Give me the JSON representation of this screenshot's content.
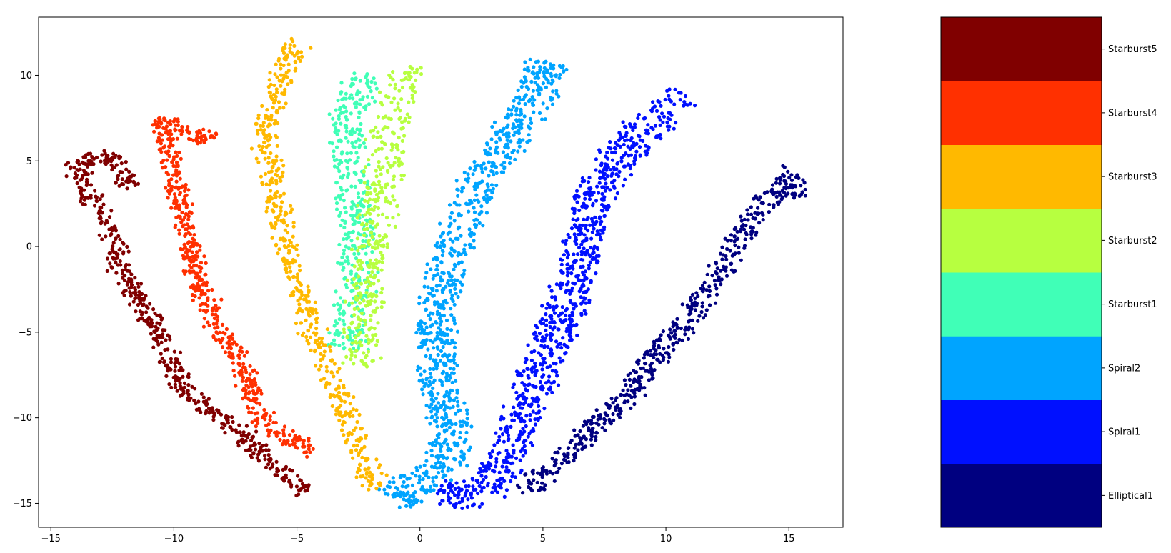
{
  "chart_data": {
    "type": "scatter",
    "title": "",
    "xlabel": "",
    "ylabel": "",
    "xlim": [
      -15.5,
      17.2
    ],
    "ylim": [
      -16.4,
      13.4
    ],
    "x_ticks": [
      -15,
      -10,
      -5,
      0,
      5,
      10,
      15
    ],
    "y_ticks": [
      -15,
      -10,
      -5,
      0,
      5,
      10
    ],
    "grid": false,
    "colorbar": {
      "position": "right",
      "categories": [
        "Elliptical1",
        "Spiral1",
        "Spiral2",
        "Starburst1",
        "Starburst2",
        "Starburst3",
        "Starburst4",
        "Starburst5"
      ],
      "colors": [
        "#000080",
        "#0010ff",
        "#00a4ff",
        "#40ffb7",
        "#b7ff40",
        "#ffb900",
        "#ff3000",
        "#800000"
      ]
    },
    "series": [
      {
        "name": "Elliptical1",
        "color": "#000080",
        "spine": [
          [
            4.3,
            -14.3
          ],
          [
            6.2,
            -11.8
          ],
          [
            8.2,
            -9.0
          ],
          [
            9.6,
            -6.5
          ],
          [
            11.0,
            -4.0
          ],
          [
            12.2,
            -1.5
          ],
          [
            13.2,
            1.0
          ],
          [
            14.3,
            3.0
          ],
          [
            15.5,
            3.5
          ],
          [
            14.5,
            4.4
          ]
        ],
        "width": 0.9,
        "points": 520
      },
      {
        "name": "Spiral1",
        "color": "#0010ff",
        "spine": [
          [
            0.8,
            -14.7
          ],
          [
            2.6,
            -14.3
          ],
          [
            3.9,
            -11.5
          ],
          [
            4.4,
            -8.8
          ],
          [
            5.3,
            -5.7
          ],
          [
            6.1,
            -3.0
          ],
          [
            6.5,
            -0.5
          ],
          [
            7.0,
            2.5
          ],
          [
            8.0,
            5.0
          ],
          [
            9.5,
            7.5
          ],
          [
            10.8,
            8.8
          ]
        ],
        "width": 1.6,
        "points": 900
      },
      {
        "name": "Spiral2",
        "color": "#00a4ff",
        "spine": [
          [
            -1.2,
            -14.8
          ],
          [
            1.0,
            -12.8
          ],
          [
            1.3,
            -10.5
          ],
          [
            0.7,
            -8.0
          ],
          [
            0.7,
            -5.0
          ],
          [
            0.9,
            -2.0
          ],
          [
            1.5,
            0.5
          ],
          [
            2.3,
            3.5
          ],
          [
            3.5,
            6.0
          ],
          [
            4.6,
            8.5
          ],
          [
            5.2,
            10.8
          ]
        ],
        "width": 1.5,
        "points": 900
      },
      {
        "name": "Starburst1",
        "color": "#40ffb7",
        "spine": [
          [
            -3.0,
            -6.0
          ],
          [
            -2.6,
            -2.5
          ],
          [
            -2.6,
            1.0
          ],
          [
            -2.8,
            4.0
          ],
          [
            -3.0,
            7.0
          ],
          [
            -2.2,
            10.0
          ]
        ],
        "width": 1.4,
        "points": 380
      },
      {
        "name": "Starburst2",
        "color": "#b7ff40",
        "spine": [
          [
            -2.4,
            -7.0
          ],
          [
            -2.3,
            -3.5
          ],
          [
            -2.0,
            0.0
          ],
          [
            -1.6,
            3.5
          ],
          [
            -1.2,
            7.0
          ],
          [
            -0.6,
            10.5
          ]
        ],
        "width": 1.4,
        "points": 380
      },
      {
        "name": "Starburst3",
        "color": "#ffb900",
        "spine": [
          [
            -1.8,
            -14.2
          ],
          [
            -2.5,
            -11.5
          ],
          [
            -3.3,
            -8.5
          ],
          [
            -4.5,
            -4.5
          ],
          [
            -5.3,
            -1.0
          ],
          [
            -5.8,
            2.5
          ],
          [
            -6.3,
            6.5
          ],
          [
            -5.5,
            10.3
          ],
          [
            -5.0,
            12.0
          ]
        ],
        "width": 0.8,
        "points": 520
      },
      {
        "name": "Starburst4",
        "color": "#ff3000",
        "spine": [
          [
            -4.4,
            -11.9
          ],
          [
            -6.3,
            -10.4
          ],
          [
            -7.2,
            -7.0
          ],
          [
            -8.5,
            -4.0
          ],
          [
            -9.0,
            -2.0
          ],
          [
            -9.5,
            1.0
          ],
          [
            -10.0,
            4.0
          ],
          [
            -10.6,
            7.5
          ],
          [
            -9.2,
            6.5
          ],
          [
            -8.2,
            6.3
          ]
        ],
        "width": 0.7,
        "points": 560
      },
      {
        "name": "Starburst5",
        "color": "#800000",
        "spine": [
          [
            -4.5,
            -14.5
          ],
          [
            -6.5,
            -12.0
          ],
          [
            -7.8,
            -10.4
          ],
          [
            -9.5,
            -8.5
          ],
          [
            -11.0,
            -4.0
          ],
          [
            -12.0,
            -2.0
          ],
          [
            -12.6,
            1.0
          ],
          [
            -13.7,
            3.5
          ],
          [
            -13.9,
            5.0
          ],
          [
            -12.5,
            5.3
          ],
          [
            -11.8,
            3.5
          ]
        ],
        "width": 0.7,
        "points": 560
      }
    ]
  }
}
